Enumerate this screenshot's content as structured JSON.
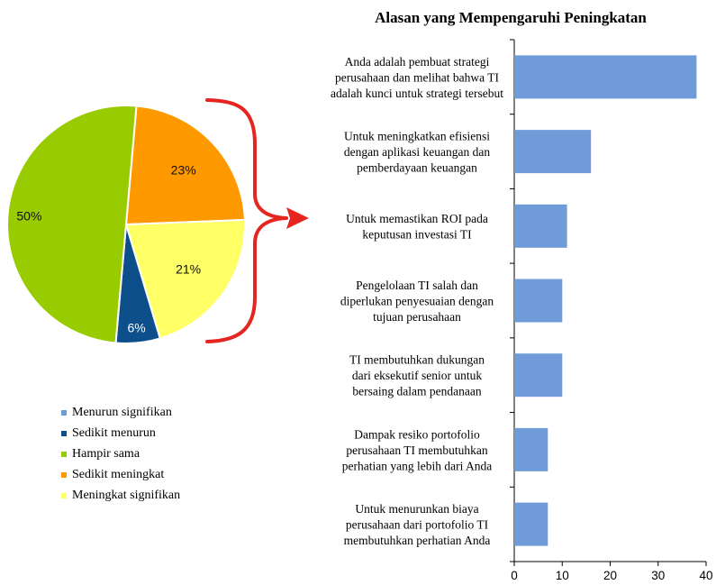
{
  "chart_data": [
    {
      "type": "pie",
      "slices": [
        {
          "name": "Menurun signifikan",
          "value": 0,
          "label": "",
          "color": "#6f9cd8"
        },
        {
          "name": "Sedikit menurun",
          "value": 6,
          "label": "6%",
          "color": "#0d4f8b"
        },
        {
          "name": "Hampir sama",
          "value": 50,
          "label": "50%",
          "color": "#99cc00"
        },
        {
          "name": "Sedikit meningkat",
          "value": 23,
          "label": "23%",
          "color": "#ff9900"
        },
        {
          "name": "Meningkat signifikan",
          "value": 21,
          "label": "21%",
          "color": "#ffff66"
        }
      ],
      "legend_position": "bottom",
      "highlight": {
        "slices": [
          "Sedikit meningkat",
          "Meningkat signifikan"
        ],
        "bracket_color": "#e52620"
      }
    },
    {
      "type": "bar",
      "orientation": "horizontal",
      "title": "Alasan yang Mempengaruhi Peningkatan",
      "categories": [
        "Anda adalah pembuat strategi perusahaan dan melihat bahwa TI adalah kunci untuk strategi tersebut",
        "Untuk meningkatkan efisiensi dengan aplikasi keuangan dan pemberdayaan keuangan",
        "Untuk memastikan ROI pada keputusan investasi TI",
        "Pengelolaan TI salah dan diperlukan penyesuaian dengan tujuan perusahaan",
        "TI membutuhkan dukungan dari eksekutif senior untuk bersaing dalam pendanaan",
        "Dampak resiko portofolio perusahaan TI membutuhkan perhatian yang lebih dari Anda",
        "Untuk menurunkan biaya perusahaan dari portofolio TI membutuhkan perhatian Anda"
      ],
      "category_lines": [
        [
          "Anda adalah pembuat strategi",
          "perusahaan dan melihat bahwa TI",
          "adalah kunci untuk strategi tersebut"
        ],
        [
          "Untuk meningkatkan efisiensi",
          "dengan aplikasi keuangan dan",
          "pemberdayaan keuangan"
        ],
        [
          "Untuk memastikan ROI pada",
          "keputusan investasi TI"
        ],
        [
          "Pengelolaan TI salah dan",
          "diperlukan penyesuaian dengan",
          "tujuan perusahaan"
        ],
        [
          "TI membutuhkan dukungan",
          "dari eksekutif senior untuk",
          "bersaing dalam pendanaan"
        ],
        [
          "Dampak resiko portofolio",
          "perusahaan TI membutuhkan",
          "perhatian yang lebih dari Anda"
        ],
        [
          "Untuk menurunkan biaya",
          "perusahaan dari portofolio TI",
          "membutuhkan perhatian Anda"
        ]
      ],
      "values": [
        38,
        16,
        11,
        10,
        10,
        7,
        7
      ],
      "xlim": [
        0,
        40
      ],
      "xticks": [
        0,
        10,
        20,
        30,
        40
      ],
      "grid": false,
      "bar_color": "#6f9cd8"
    }
  ]
}
